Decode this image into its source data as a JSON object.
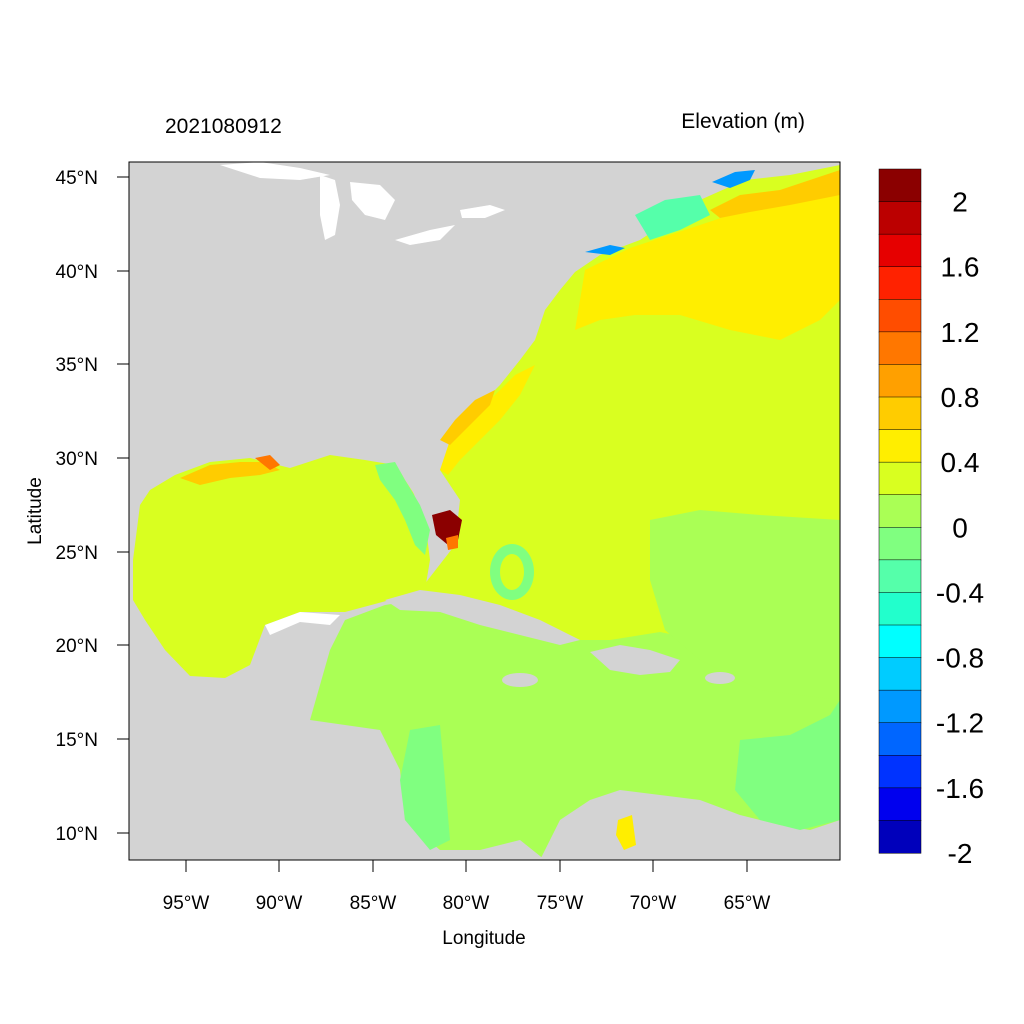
{
  "header": {
    "datetime": "2021080912",
    "variable": "Elevation (m)"
  },
  "axes": {
    "xlabel": "Longitude",
    "ylabel": "Latitude",
    "xticks": [
      "95°W",
      "90°W",
      "85°W",
      "80°W",
      "75°W",
      "70°W",
      "65°W"
    ],
    "yticks": [
      "45°N",
      "40°N",
      "35°N",
      "30°N",
      "25°N",
      "20°N",
      "15°N",
      "10°N"
    ],
    "lon_range": [
      -98,
      -60
    ],
    "lat_range": [
      8.5,
      46
    ]
  },
  "colorbar": {
    "labels": [
      "2",
      "1.6",
      "1.2",
      "0.8",
      "0.4",
      "0",
      "-0.4",
      "-0.8",
      "-1.2",
      "-1.6",
      "-2"
    ],
    "colors": [
      "#8b0000",
      "#bb0000",
      "#e60000",
      "#ff2200",
      "#ff4d00",
      "#ff7700",
      "#ffa000",
      "#ffcc00",
      "#ffee00",
      "#d9ff20",
      "#aaff55",
      "#80ff80",
      "#55ffaa",
      "#22ffcc",
      "#00ffff",
      "#00ccff",
      "#0099ff",
      "#0066ff",
      "#0033ff",
      "#0000ee",
      "#0000bb"
    ]
  },
  "colors": {
    "land": "#d3d3d3",
    "background": "#ffffff"
  }
}
